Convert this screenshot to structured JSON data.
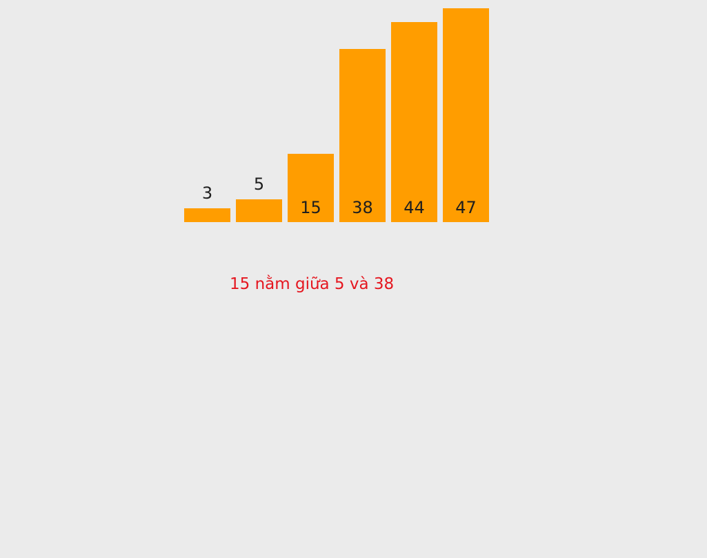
{
  "items": [
    {
      "value": 3
    },
    {
      "value": 5
    },
    {
      "value": 15
    },
    {
      "value": 38
    },
    {
      "value": 44
    },
    {
      "value": 47
    }
  ],
  "colors": {
    "background": "#ebebeb",
    "bar": "#ff9d00",
    "label": "#1e1e1e",
    "caption": "#e5161f"
  },
  "caption": "15 nằm giữa 5 và 38"
}
